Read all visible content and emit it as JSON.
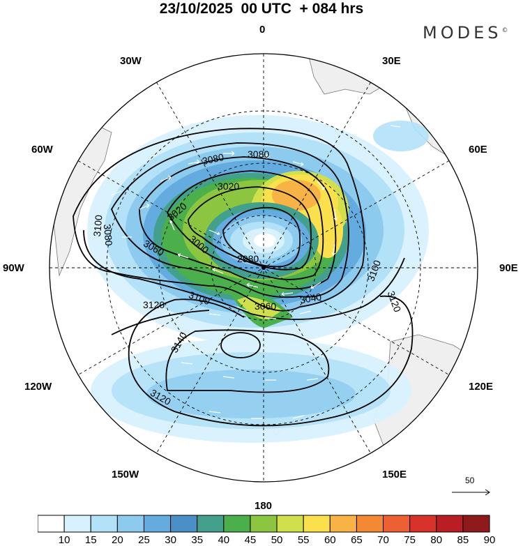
{
  "title": "23/10/2025  00 UTC  + 084 hrs",
  "brand": "MODES",
  "brand_mark": "©",
  "longitude_labels": {
    "n": "0",
    "nne": "30E",
    "ene": "60E",
    "e": "90E",
    "ese": "120E",
    "sse": "150E",
    "s": "180",
    "ssw": "150W",
    "wsw": "120W",
    "w": "90W",
    "wnw": "60W",
    "nnw": "30W"
  },
  "contour_labels": [
    "3080",
    "3080",
    "3020",
    "3020",
    "3000",
    "2980",
    "3100",
    "3080",
    "3060",
    "3060",
    "3040",
    "3100",
    "3120",
    "3100",
    "3120",
    "3140",
    "3120"
  ],
  "scale_vector_value": "50",
  "colorbar": {
    "ticks": [
      "10",
      "15",
      "20",
      "25",
      "30",
      "35",
      "40",
      "45",
      "50",
      "55",
      "60",
      "65",
      "70",
      "75",
      "80",
      "85",
      "90"
    ],
    "colors": [
      "#ffffff",
      "#d7f1fd",
      "#b3e1f8",
      "#8ccbee",
      "#64abdf",
      "#4a8fc6",
      "#42a08c",
      "#4bb04c",
      "#8cc53f",
      "#cfe04c",
      "#fae04c",
      "#f7b345",
      "#f38a33",
      "#ec6033",
      "#d9322b",
      "#b81e24",
      "#8e1a1c"
    ]
  },
  "colors": {
    "ocean": "#ffffff",
    "land": "#efefef",
    "contour": "#000000",
    "grid": "#000000",
    "wind_arrow": "#ffffff"
  }
}
